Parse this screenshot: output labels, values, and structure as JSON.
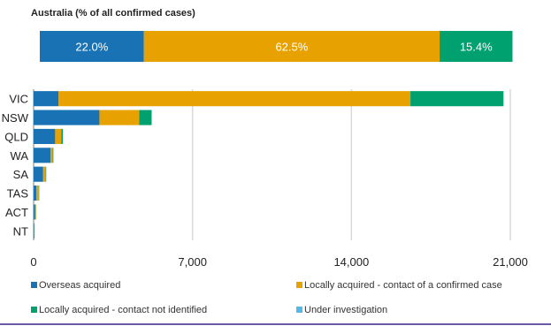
{
  "chart_data": [
    {
      "type": "bar",
      "orientation": "horizontal",
      "stacked": true,
      "title": "Australia (% of all confirmed cases)",
      "series": [
        {
          "name": "Overseas acquired",
          "value": 22.0,
          "label": "22.0%"
        },
        {
          "name": "Locally acquired - contact of a confirmed case",
          "value": 62.5,
          "label": "62.5%"
        },
        {
          "name": "Locally acquired - contact not identified",
          "value": 15.4,
          "label": "15.4%"
        }
      ],
      "xlim": [
        0,
        100
      ]
    },
    {
      "type": "bar",
      "orientation": "horizontal",
      "stacked": true,
      "categories": [
        "VIC",
        "NSW",
        "QLD",
        "WA",
        "SA",
        "TAS",
        "ACT",
        "NT"
      ],
      "series": [
        {
          "name": "Overseas acquired",
          "values": [
            1100,
            2900,
            950,
            750,
            420,
            120,
            60,
            30
          ]
        },
        {
          "name": "Locally acquired - contact of a confirmed case",
          "values": [
            15500,
            1750,
            270,
            90,
            110,
            120,
            40,
            10
          ]
        },
        {
          "name": "Locally acquired - contact not identified",
          "values": [
            4100,
            550,
            70,
            30,
            25,
            10,
            10,
            5
          ]
        },
        {
          "name": "Under investigation",
          "values": [
            0,
            0,
            0,
            0,
            0,
            0,
            0,
            0
          ]
        }
      ],
      "xlim": [
        0,
        21000
      ],
      "xticks": [
        0,
        7000,
        14000,
        21000
      ],
      "xtick_labels": [
        "0",
        "7,000",
        "14,000",
        "21,000"
      ],
      "grid": true,
      "legend_position": "bottom"
    }
  ],
  "colors": {
    "overseas": "#1872b4",
    "locally_contact_confirmed": "#e7a100",
    "locally_contact_not_identified": "#00a06f",
    "under_investigation": "#55b8e6",
    "grid": "#d9d9d9",
    "axis": "#7f7f7f",
    "bottom_rule": "#6b5aa6"
  },
  "legend": [
    {
      "label": "Overseas acquired",
      "color_key": "overseas"
    },
    {
      "label": "Locally acquired - contact of a confirmed case",
      "color_key": "locally_contact_confirmed"
    },
    {
      "label": "Locally acquired - contact not identified",
      "color_key": "locally_contact_not_identified"
    },
    {
      "label": "Under investigation",
      "color_key": "under_investigation"
    }
  ]
}
